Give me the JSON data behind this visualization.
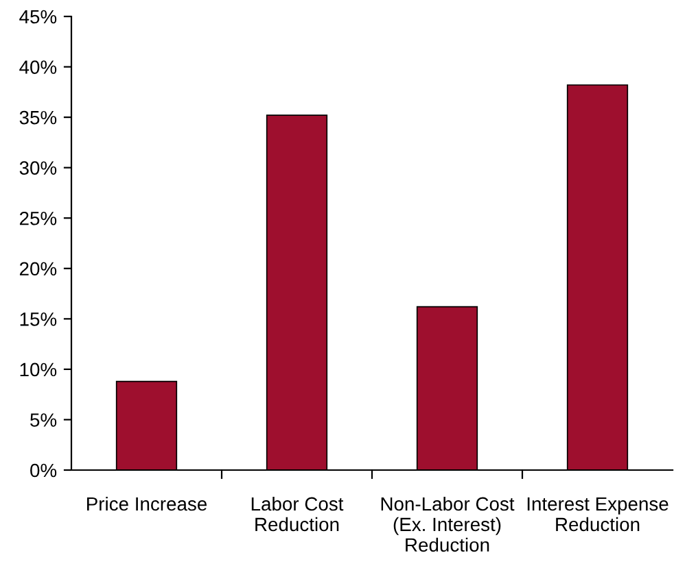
{
  "chart_data": {
    "type": "bar",
    "categories": [
      "Price Increase",
      "Labor Cost\nReduction",
      "Non-Labor Cost\n(Ex. Interest)\nReduction",
      "Interest Expense\nReduction"
    ],
    "values": [
      8.8,
      35.2,
      16.2,
      38.2
    ],
    "color": "#9e0f2e",
    "ylim": [
      0,
      45
    ],
    "yticks": [
      {
        "value": 0,
        "label": "0%"
      },
      {
        "value": 5,
        "label": "5%"
      },
      {
        "value": 10,
        "label": "10%"
      },
      {
        "value": 15,
        "label": "15%"
      },
      {
        "value": 20,
        "label": "20%"
      },
      {
        "value": 25,
        "label": "25%"
      },
      {
        "value": 30,
        "label": "30%"
      },
      {
        "value": 35,
        "label": "35%"
      },
      {
        "value": 40,
        "label": "40%"
      },
      {
        "value": 45,
        "label": "45%"
      }
    ],
    "grid": false,
    "legend": false
  }
}
